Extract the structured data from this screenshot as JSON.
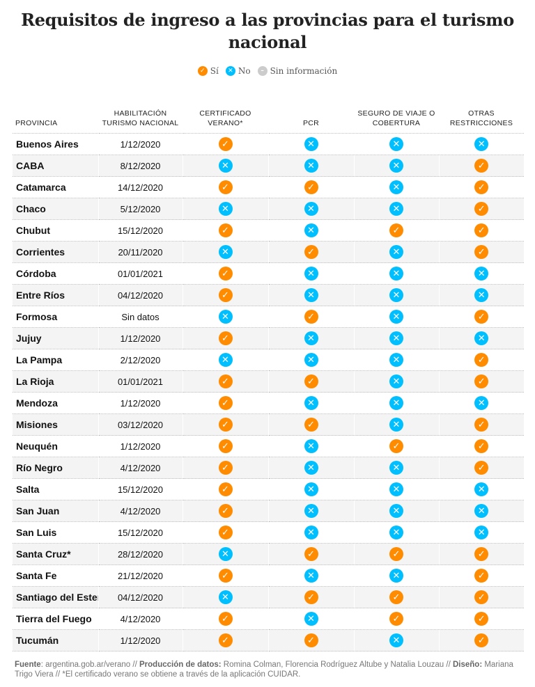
{
  "title": "Requisitos de ingreso a las provincias para el turismo nacional",
  "legend": {
    "yes": "Sí",
    "no": "No",
    "na": "Sin información"
  },
  "colors": {
    "yes": "#ff8c00",
    "no": "#00bfff",
    "na": "#cccccc"
  },
  "headers": [
    "PROVINCIA",
    "HABILITACIÓN TURISMO NACIONAL",
    "CERTIFICADO VERANO*",
    "PCR",
    "SEGURO DE VIAJE O COBERTURA",
    "OTRAS RESTRICCIONES"
  ],
  "rows": [
    {
      "provincia": "Buenos Aires",
      "fecha": "1/12/2020",
      "vals": [
        "yes",
        "no",
        "no",
        "no"
      ]
    },
    {
      "provincia": "CABA",
      "fecha": "8/12/2020",
      "vals": [
        "no",
        "no",
        "no",
        "yes"
      ]
    },
    {
      "provincia": "Catamarca",
      "fecha": "14/12/2020",
      "vals": [
        "yes",
        "yes",
        "no",
        "yes"
      ]
    },
    {
      "provincia": "Chaco",
      "fecha": "5/12/2020",
      "vals": [
        "no",
        "no",
        "no",
        "yes"
      ]
    },
    {
      "provincia": "Chubut",
      "fecha": "15/12/2020",
      "vals": [
        "yes",
        "no",
        "yes",
        "yes"
      ]
    },
    {
      "provincia": "Corrientes",
      "fecha": "20/11/2020",
      "vals": [
        "no",
        "yes",
        "no",
        "yes"
      ]
    },
    {
      "provincia": "Córdoba",
      "fecha": "01/01/2021",
      "vals": [
        "yes",
        "no",
        "no",
        "no"
      ]
    },
    {
      "provincia": "Entre Ríos",
      "fecha": "04/12/2020",
      "vals": [
        "yes",
        "no",
        "no",
        "no"
      ]
    },
    {
      "provincia": "Formosa",
      "fecha": "Sin datos",
      "vals": [
        "no",
        "yes",
        "no",
        "yes"
      ]
    },
    {
      "provincia": "Jujuy",
      "fecha": "1/12/2020",
      "vals": [
        "yes",
        "no",
        "no",
        "no"
      ]
    },
    {
      "provincia": "La Pampa",
      "fecha": "2/12/2020",
      "vals": [
        "no",
        "no",
        "no",
        "yes"
      ]
    },
    {
      "provincia": "La Rioja",
      "fecha": "01/01/2021",
      "vals": [
        "yes",
        "yes",
        "no",
        "yes"
      ]
    },
    {
      "provincia": "Mendoza",
      "fecha": "1/12/2020",
      "vals": [
        "yes",
        "no",
        "no",
        "no"
      ]
    },
    {
      "provincia": "Misiones",
      "fecha": "03/12/2020",
      "vals": [
        "yes",
        "yes",
        "no",
        "yes"
      ]
    },
    {
      "provincia": "Neuquén",
      "fecha": "1/12/2020",
      "vals": [
        "yes",
        "no",
        "yes",
        "yes"
      ]
    },
    {
      "provincia": "Río Negro",
      "fecha": "4/12/2020",
      "vals": [
        "yes",
        "no",
        "no",
        "yes"
      ]
    },
    {
      "provincia": "Salta",
      "fecha": "15/12/2020",
      "vals": [
        "yes",
        "no",
        "no",
        "no"
      ]
    },
    {
      "provincia": "San Juan",
      "fecha": "4/12/2020",
      "vals": [
        "yes",
        "no",
        "no",
        "no"
      ]
    },
    {
      "provincia": "San Luis",
      "fecha": "15/12/2020",
      "vals": [
        "yes",
        "no",
        "no",
        "no"
      ]
    },
    {
      "provincia": "Santa Cruz*",
      "fecha": "28/12/2020",
      "vals": [
        "no",
        "yes",
        "yes",
        "yes"
      ]
    },
    {
      "provincia": "Santa Fe",
      "fecha": "21/12/2020",
      "vals": [
        "yes",
        "no",
        "no",
        "yes"
      ]
    },
    {
      "provincia": "Santiago del Estero",
      "fecha": "04/12/2020",
      "vals": [
        "no",
        "yes",
        "yes",
        "yes"
      ]
    },
    {
      "provincia": "Tierra del Fuego",
      "fecha": "4/12/2020",
      "vals": [
        "yes",
        "no",
        "yes",
        "yes"
      ]
    },
    {
      "provincia": "Tucumán",
      "fecha": "1/12/2020",
      "vals": [
        "yes",
        "yes",
        "no",
        "yes"
      ]
    }
  ],
  "footer": {
    "fuente_label": "Fuente",
    "fuente": ": argentina.gob.ar/verano // ",
    "produccion_label": "Producción de datos:",
    "produccion": " Romina Colman, Florencia Rodríguez Altube y Natalia Louzau // ",
    "diseno_label": "Diseño:",
    "diseno": " Mariana Trigo Viera // *El certificado verano se obtiene a través de la aplicación CUIDAR."
  }
}
